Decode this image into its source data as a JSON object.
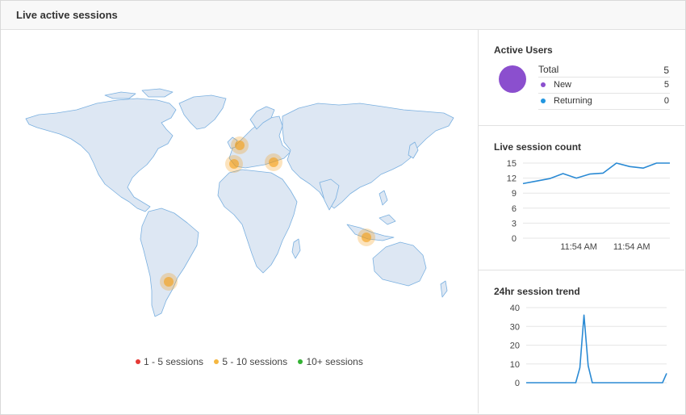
{
  "header": {
    "title": "Live active sessions"
  },
  "map": {
    "legend": [
      {
        "label": "1 - 5 sessions",
        "color": "#e53935"
      },
      {
        "label": "5 - 10 sessions",
        "color": "#f5b740"
      },
      {
        "label": "10+ sessions",
        "color": "#34b234"
      }
    ],
    "land_color": "#dde7f3",
    "border_color": "#7ab0e0",
    "marker_color": "#f39c12"
  },
  "active_users": {
    "title": "Active Users",
    "total_label": "Total",
    "total_value": "5",
    "new_label": "New",
    "new_value": "5",
    "returning_label": "Returning",
    "returning_value": "0",
    "colors": {
      "total": "#8b4fce",
      "new": "#8b4fce",
      "returning": "#2196e0"
    }
  },
  "live_session_count": {
    "title": "Live session count",
    "chart_data": {
      "type": "line",
      "title": "Live session count",
      "y_ticks": [
        "15",
        "12",
        "9",
        "6",
        "3",
        "0"
      ],
      "x_labels": [
        "11:54 AM",
        "11:54 AM"
      ],
      "ylim": [
        0,
        15
      ],
      "values": [
        10.9,
        11.4,
        11.9,
        12.9,
        12.0,
        12.8,
        13.0,
        15.0,
        14.3,
        14.0,
        15.0,
        15.0
      ],
      "color": "#2a8ad4",
      "grid": true
    }
  },
  "trend_24hr": {
    "title": "24hr session trend",
    "chart_data": {
      "type": "line",
      "title": "24hr session trend",
      "y_ticks": [
        "40",
        "30",
        "20",
        "10",
        "0"
      ],
      "ylim": [
        0,
        40
      ],
      "values": [
        0,
        0,
        0,
        0,
        0,
        0,
        0,
        0,
        0,
        0,
        0,
        0,
        0,
        8,
        36,
        9,
        0,
        0,
        0,
        0,
        0,
        0,
        0,
        0,
        0,
        0,
        0,
        0,
        0,
        0,
        0,
        0,
        0,
        0,
        5
      ],
      "color": "#2a8ad4",
      "grid": true
    }
  }
}
